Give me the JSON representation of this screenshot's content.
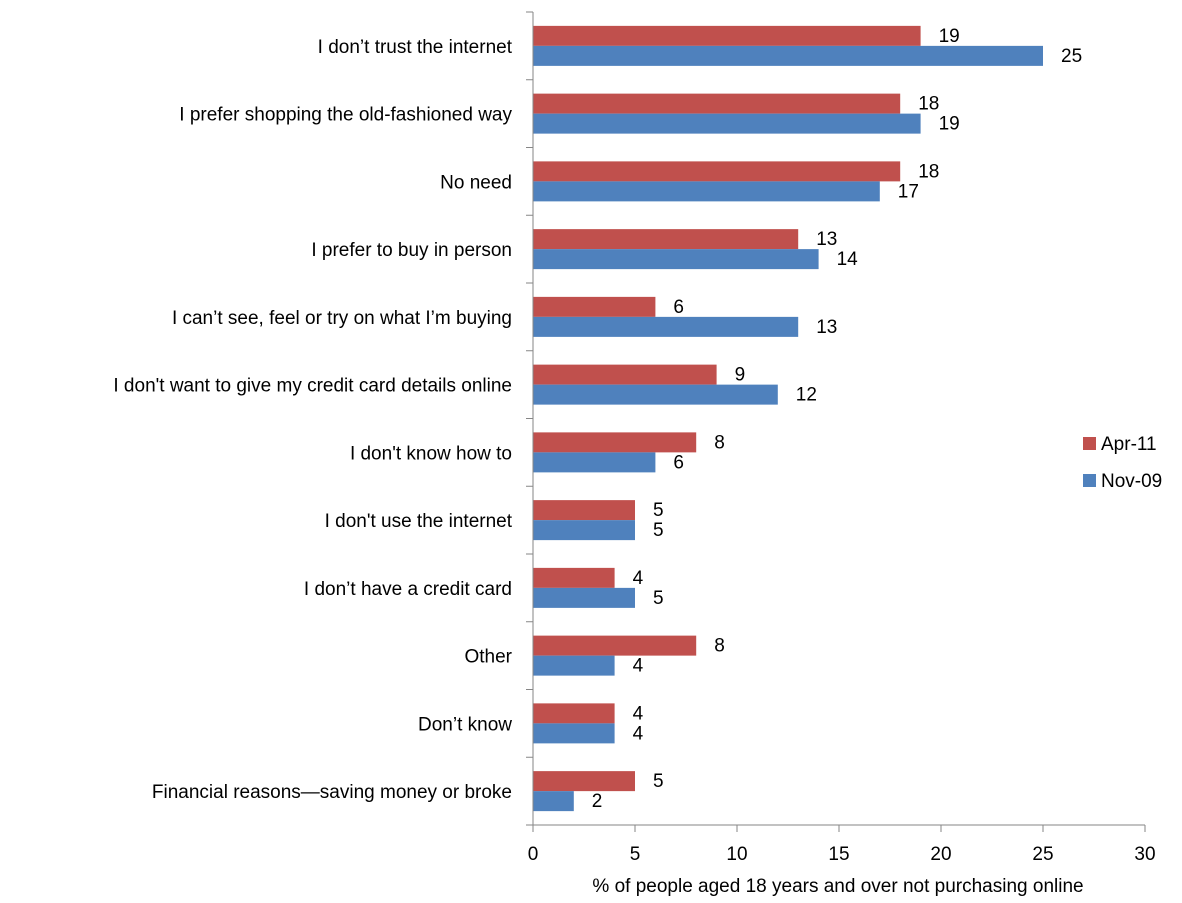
{
  "chart_data": {
    "type": "bar",
    "orientation": "horizontal",
    "categories": [
      "I don’t trust the internet",
      "I prefer shopping the old-fashioned way",
      "No need",
      "I prefer to buy in person",
      "I can’t see, feel or try on what I’m buying",
      "I don't want to give my credit card details online",
      "I don't know how to",
      "I don't use the internet",
      "I don’t have a credit card",
      "Other",
      "Don’t know",
      "Financial reasons—saving money or broke"
    ],
    "series": [
      {
        "name": "Apr-11",
        "color": "#c0504d",
        "values": [
          19,
          18,
          18,
          13,
          6,
          9,
          8,
          5,
          4,
          8,
          4,
          5
        ],
        "labels": [
          "19",
          "18",
          "18",
          "13",
          "6",
          "9",
          "8",
          "5",
          "4",
          "8",
          "4",
          "5"
        ]
      },
      {
        "name": "Nov-09",
        "color": "#4f81bd",
        "values": [
          25,
          19,
          17,
          14,
          13,
          12,
          6,
          5,
          5,
          4,
          4,
          2
        ],
        "labels": [
          "25",
          "19",
          "17",
          "14",
          "13",
          "12",
          "6",
          "5",
          "5",
          "4",
          "4",
          "2"
        ]
      }
    ],
    "xlim": [
      0,
      30
    ],
    "xticks": [
      "0",
      "5",
      "10",
      "15",
      "20",
      "25",
      "30"
    ],
    "xlabel": "% of people aged 18 years and over not purchasing online",
    "ylabel": "",
    "title": "",
    "grid": false,
    "legend_position": "right"
  }
}
